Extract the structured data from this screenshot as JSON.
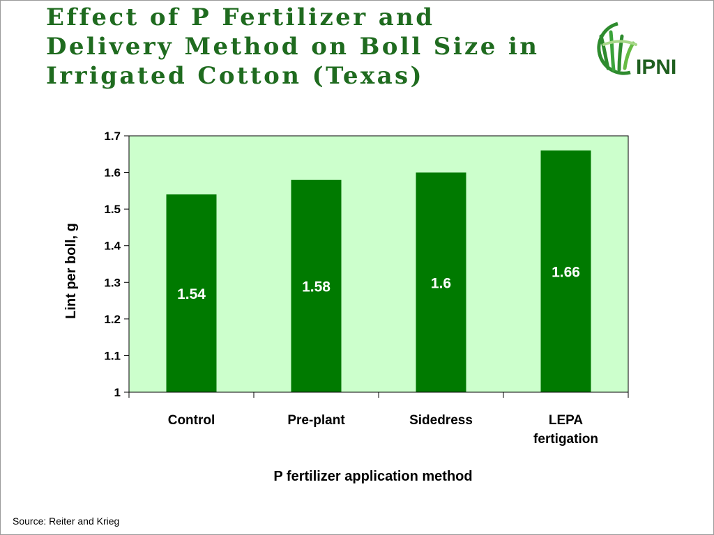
{
  "slide": {
    "title": "Effect of P Fertilizer and Delivery Method on Boll Size in Irrigated Cotton (Texas)",
    "source": "Source: Reiter and Krieg",
    "logo_text": "IPNI"
  },
  "colors": {
    "title": "#1f6b1f",
    "bar": "#007a00",
    "plot_background": "#ccffcc",
    "logo_green": "#2e8b2e"
  },
  "chart_data": {
    "type": "bar",
    "categories": [
      "Control",
      "Pre-plant",
      "Sidedress",
      "LEPA fertigation"
    ],
    "category_lines": [
      [
        "Control"
      ],
      [
        "Pre-plant"
      ],
      [
        "Sidedress"
      ],
      [
        "LEPA",
        "fertigation"
      ]
    ],
    "values": [
      1.54,
      1.58,
      1.6,
      1.66
    ],
    "data_labels": [
      "1.54",
      "1.58",
      "1.6",
      "1.66"
    ],
    "title": "",
    "xlabel": "P fertilizer application method",
    "ylabel": "Lint per boll, g",
    "ylim": [
      1,
      1.7
    ],
    "yticks": [
      1,
      1.1,
      1.2,
      1.3,
      1.4,
      1.5,
      1.6,
      1.7
    ],
    "ytick_labels": [
      "1",
      "1.1",
      "1.2",
      "1.3",
      "1.4",
      "1.5",
      "1.6",
      "1.7"
    ],
    "grid": false,
    "legend": "none"
  }
}
